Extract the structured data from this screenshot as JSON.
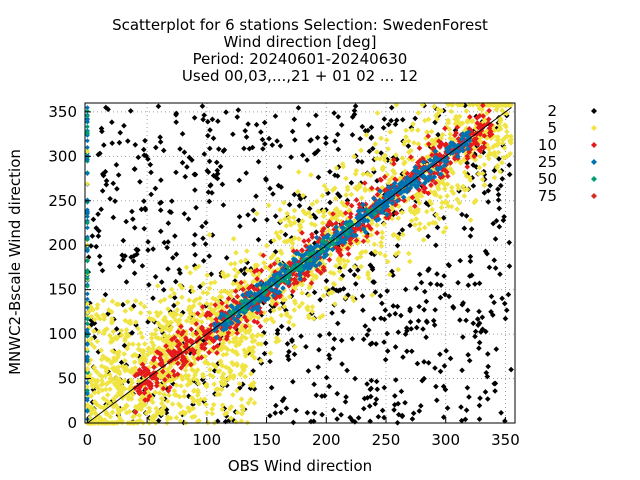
{
  "chart_data": {
    "type": "scatter",
    "title_lines": [
      "Scatterplot for    6 stations Selection: SwedenForest",
      "Wind direction [deg]",
      "Period: 20240601-20240630",
      "Used 00,03,...,21 + 01 02 ... 12"
    ],
    "xlabel": "OBS Wind direction",
    "ylabel": "MNWC2-Bscale Wind direction",
    "xlim": [
      -2,
      358
    ],
    "ylim": [
      0,
      360
    ],
    "x_ticks": [
      0,
      50,
      100,
      150,
      200,
      250,
      300,
      350
    ],
    "y_ticks": [
      0,
      50,
      100,
      150,
      200,
      250,
      300,
      350
    ],
    "grid": true,
    "diagonal_line": true,
    "legend_position": "right",
    "legend": [
      {
        "label": "2",
        "color": "#000000"
      },
      {
        "label": "5",
        "color": "#f0e442"
      },
      {
        "label": "10",
        "color": "#e41a1c"
      },
      {
        "label": "25",
        "color": "#0072b2"
      },
      {
        "label": "50",
        "color": "#009e73"
      },
      {
        "label": "75",
        "color": "#d62d20"
      }
    ]
  }
}
